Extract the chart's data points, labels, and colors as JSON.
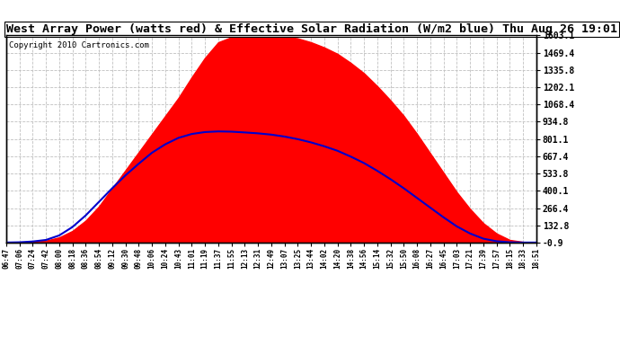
{
  "title": "West Array Power (watts red) & Effective Solar Radiation (W/m2 blue) Thu Aug 26 19:01",
  "copyright": "Copyright 2010 Cartronics.com",
  "ylabel_right_ticks": [
    1603.1,
    1469.4,
    1335.8,
    1202.1,
    1068.4,
    934.8,
    801.1,
    667.4,
    533.8,
    400.1,
    266.4,
    132.8,
    -0.9
  ],
  "ylim": [
    -0.9,
    1603.1
  ],
  "x_labels": [
    "06:47",
    "07:06",
    "07:24",
    "07:42",
    "08:00",
    "08:18",
    "08:36",
    "08:54",
    "09:12",
    "09:30",
    "09:48",
    "10:06",
    "10:24",
    "10:43",
    "11:01",
    "11:19",
    "11:37",
    "11:55",
    "12:13",
    "12:31",
    "12:49",
    "13:07",
    "13:25",
    "13:44",
    "14:02",
    "14:20",
    "14:38",
    "14:56",
    "15:14",
    "15:32",
    "15:50",
    "16:08",
    "16:27",
    "16:45",
    "17:03",
    "17:21",
    "17:39",
    "17:57",
    "18:15",
    "18:33",
    "18:51"
  ],
  "background_color": "#ffffff",
  "plot_bg_color": "#ffffff",
  "grid_color": "#c0c0c0",
  "red_color": "#ff0000",
  "blue_color": "#0000cc",
  "title_fontsize": 9.5,
  "copyright_fontsize": 6.5,
  "red_values": [
    0,
    2,
    5,
    15,
    40,
    90,
    170,
    280,
    420,
    560,
    700,
    840,
    980,
    1120,
    1280,
    1430,
    1550,
    1590,
    1600,
    1603,
    1600,
    1597,
    1580,
    1550,
    1510,
    1460,
    1390,
    1310,
    1210,
    1100,
    980,
    840,
    690,
    540,
    390,
    260,
    150,
    70,
    20,
    5,
    0
  ],
  "blue_values": [
    0,
    2,
    8,
    20,
    55,
    120,
    210,
    315,
    420,
    520,
    610,
    695,
    760,
    810,
    840,
    855,
    860,
    858,
    852,
    845,
    835,
    820,
    800,
    775,
    745,
    710,
    665,
    615,
    555,
    490,
    420,
    345,
    270,
    195,
    125,
    70,
    30,
    10,
    2,
    0,
    0
  ]
}
